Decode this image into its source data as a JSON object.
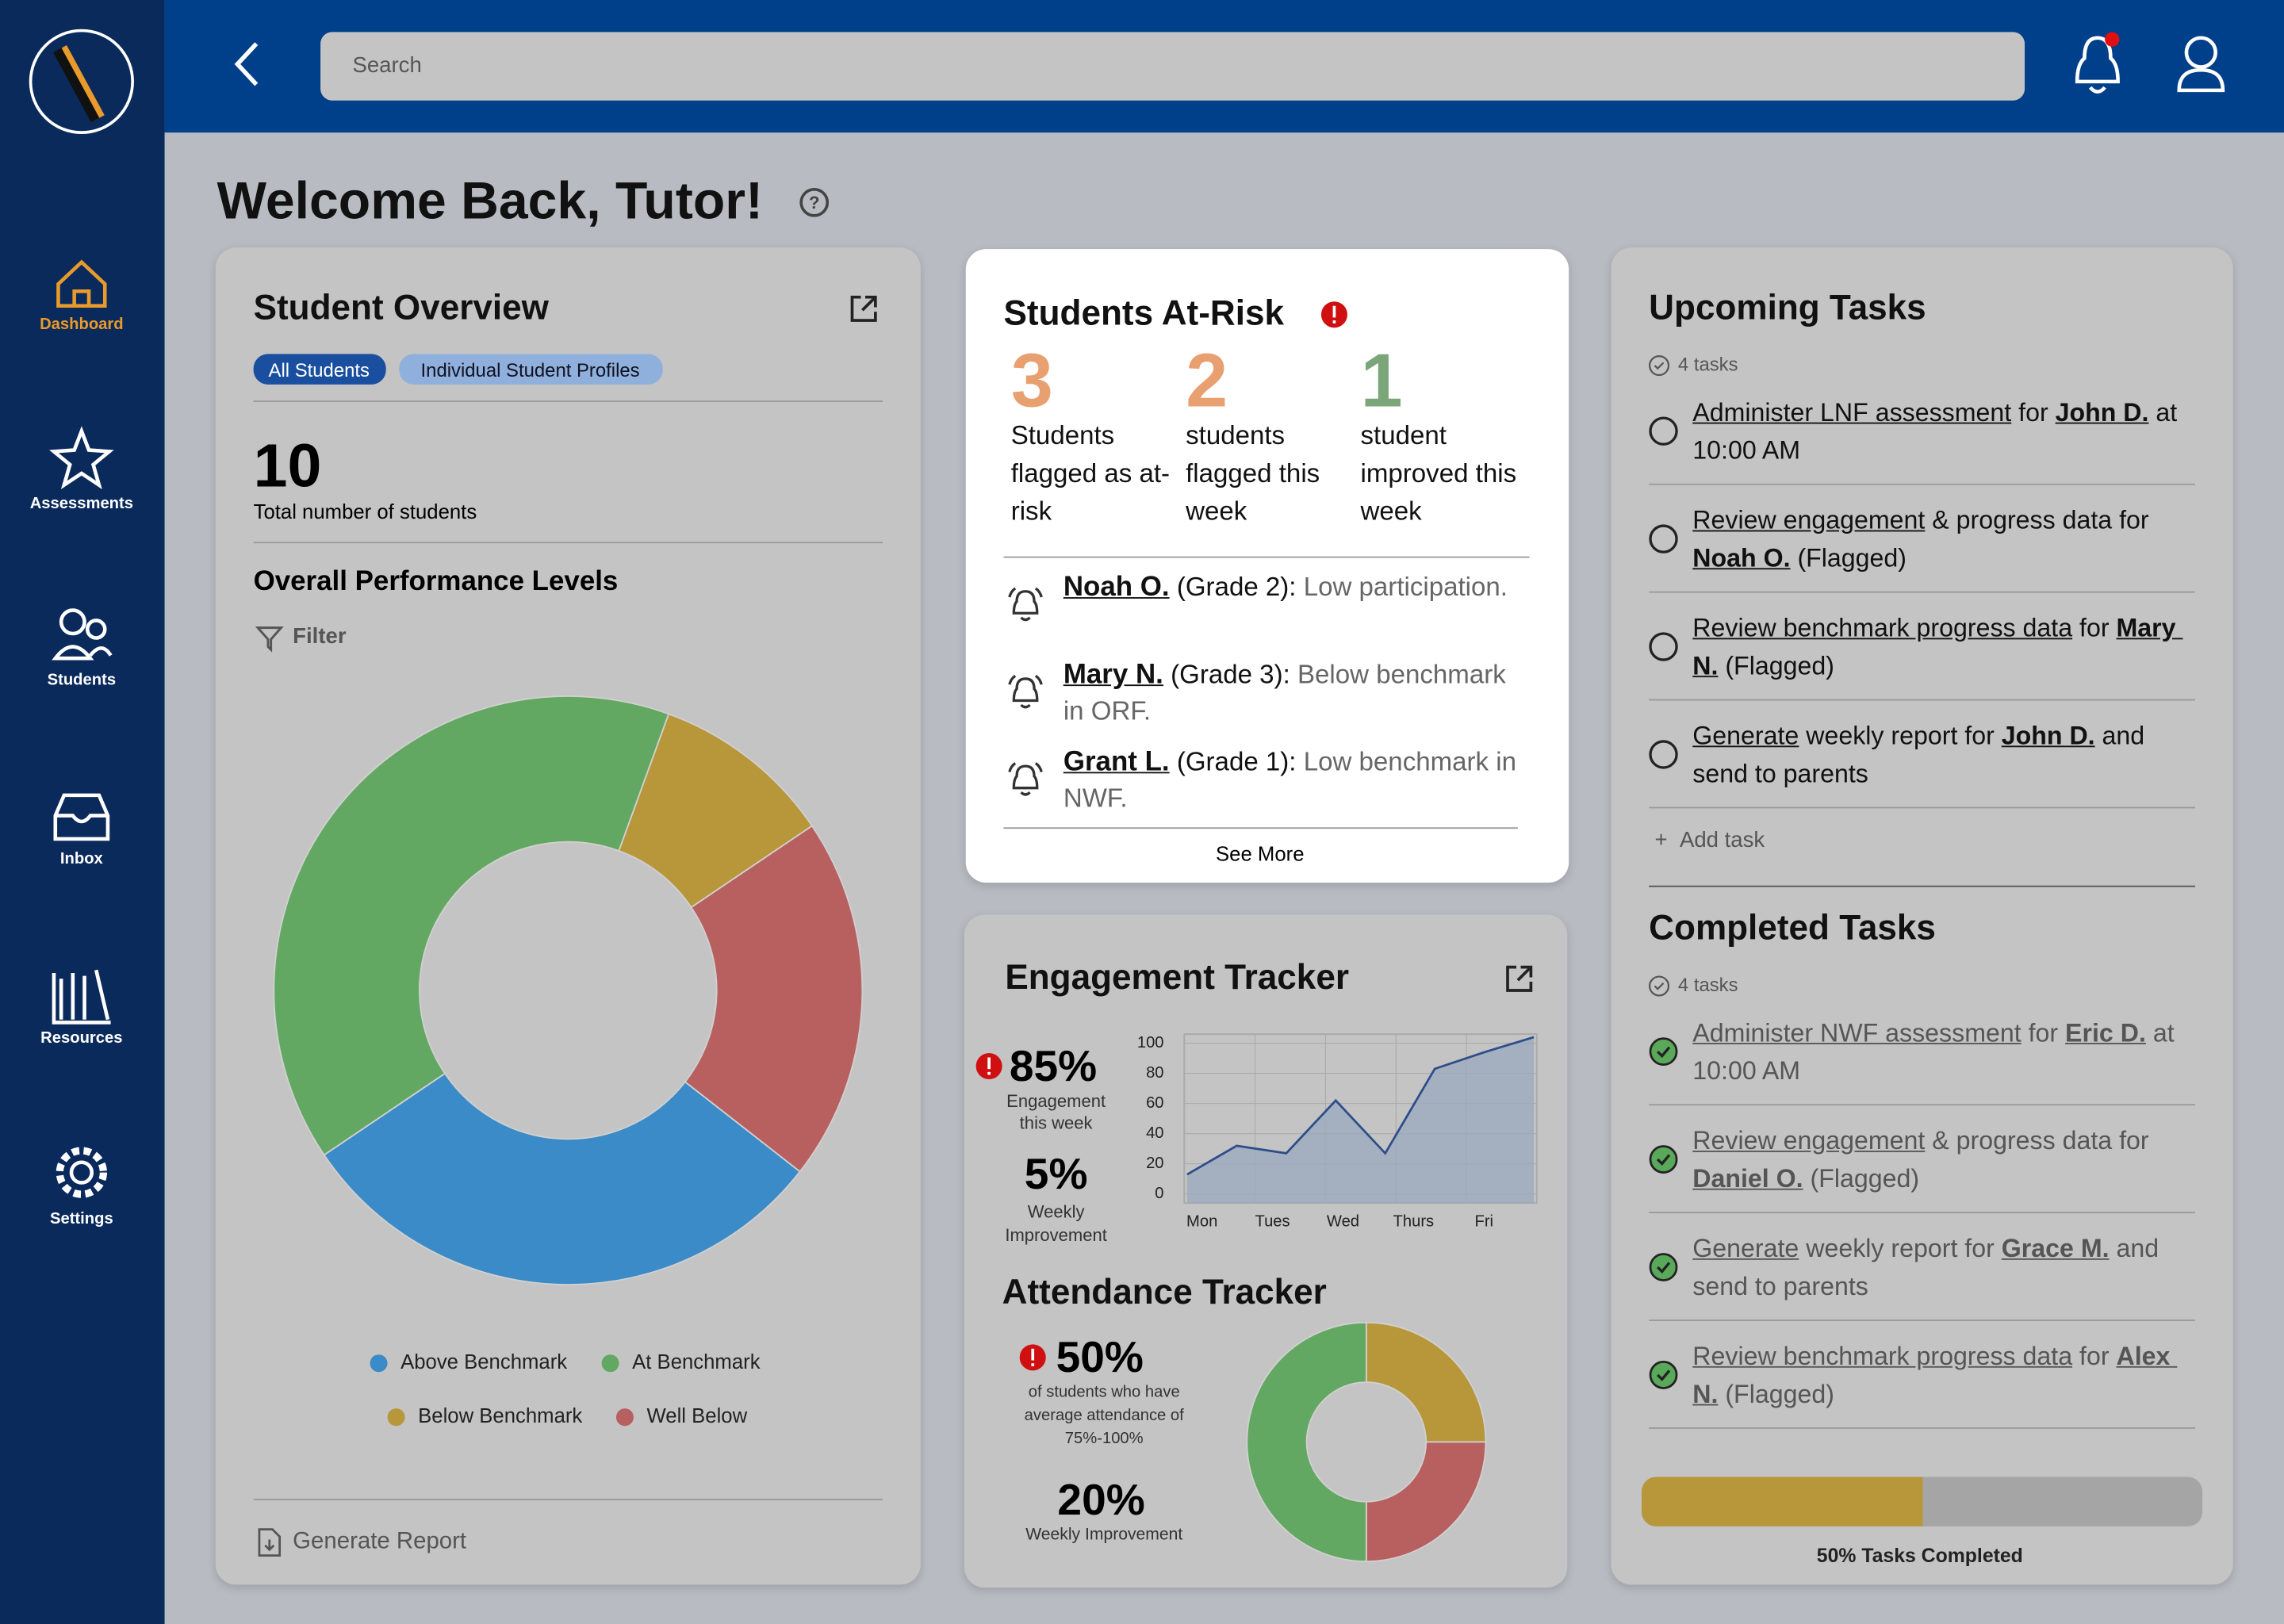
{
  "sidebar": {
    "items": [
      {
        "label": "Dashboard",
        "active": true
      },
      {
        "label": "Assessments"
      },
      {
        "label": "Students"
      },
      {
        "label": "Inbox"
      },
      {
        "label": "Resources"
      },
      {
        "label": "Settings"
      }
    ]
  },
  "header": {
    "search_placeholder": "Search"
  },
  "welcome": "Welcome Back, Tutor!",
  "overview": {
    "title": "Student Overview",
    "tabs": [
      "All Students",
      "Individual Student Profiles"
    ],
    "total": "10",
    "total_label": "Total number of students",
    "section": "Overall Performance Levels",
    "filter": "Filter",
    "footer": "Generate Report"
  },
  "at_risk": {
    "title": "Students At-Risk",
    "stats": [
      {
        "number": "3",
        "label": "Students flagged as at-risk",
        "color": "#e8a070"
      },
      {
        "number": "2",
        "label": "students flagged this week",
        "color": "#e8a070"
      },
      {
        "number": "1",
        "label": "student improved this week",
        "color": "#7aa67a"
      }
    ],
    "alerts": [
      {
        "name": "Noah O.",
        "grade": "(Grade 2):",
        "note": "Low participation."
      },
      {
        "name": "Mary N.",
        "grade": "(Grade 3):",
        "note": "Below benchmark in ORF."
      },
      {
        "name": "Grant L.",
        "grade": "(Grade 1):",
        "note": "Low benchmark in NWF."
      }
    ],
    "more": "See More"
  },
  "chart_data": [
    {
      "type": "pie",
      "donut": true,
      "categories": [
        "Above Benchmark",
        "At Benchmark",
        "Below Benchmark",
        "Well Below"
      ],
      "values": [
        30,
        40,
        10,
        20
      ],
      "colors": [
        "#3a8bc8",
        "#62a862",
        "#b8963a",
        "#b85f5f"
      ]
    },
    {
      "type": "line",
      "title": "Engagement Tracker",
      "xticks": [
        "Mon",
        "Tues",
        "Wed",
        "Thurs",
        "Fri"
      ],
      "values": [
        13,
        32,
        27,
        62,
        27,
        83,
        94,
        104
      ],
      "ylim": [
        -6,
        106
      ],
      "yticks": [
        0,
        20,
        40,
        60,
        80,
        100
      ],
      "grid": true,
      "color": "#2d4d8a",
      "fill": "#9aa8bd",
      "annotations": {
        "main": "85%",
        "main_label": "Engagement this week",
        "second": "5%",
        "second_label": "Weekly Improvement"
      }
    },
    {
      "type": "pie",
      "donut": true,
      "title": "Attendance Tracker",
      "values": [
        25,
        25,
        50
      ],
      "colors": [
        "#b8963a",
        "#b85f5f",
        "#62a862"
      ],
      "annotations": {
        "main": "50%",
        "main_label": "of students who have average attendance of 75%-100%",
        "second": "20%",
        "second_label": "Weekly Improvement"
      }
    }
  ],
  "upcoming": {
    "title": "Upcoming Tasks",
    "count": "4 tasks",
    "add": "Add task",
    "items": [
      [
        {
          "text": "Administer LNF assessment",
          "underline": true
        },
        {
          "text": " for "
        },
        {
          "text": "John D.",
          "underline": true,
          "bold": true
        },
        {
          "text": " at 10:00 AM"
        }
      ],
      [
        {
          "text": "Review engagement",
          "underline": true
        },
        {
          "text": " & progress data for "
        },
        {
          "text": "Noah O.",
          "underline": true,
          "bold": true
        },
        {
          "text": " (Flagged)"
        }
      ],
      [
        {
          "text": "Review benchmark progress data",
          "underline": true
        },
        {
          "text": " for "
        },
        {
          "text": "Mary N.",
          "underline": true,
          "bold": true
        },
        {
          "text": " (Flagged)"
        }
      ],
      [
        {
          "text": "Generate",
          "underline": true
        },
        {
          "text": " weekly report for "
        },
        {
          "text": "John D.",
          "underline": true,
          "bold": true
        },
        {
          "text": " and send to parents"
        }
      ]
    ]
  },
  "completed": {
    "title": "Completed Tasks",
    "count": "4 tasks",
    "items": [
      [
        {
          "text": "Administer NWF assessment",
          "underline": true
        },
        {
          "text": " for "
        },
        {
          "text": "Eric D.",
          "underline": true,
          "bold": true
        },
        {
          "text": " at 10:00 AM"
        }
      ],
      [
        {
          "text": "Review engagement",
          "underline": true
        },
        {
          "text": " & progress data for "
        },
        {
          "text": "Daniel O.",
          "underline": true,
          "bold": true
        },
        {
          "text": " (Flagged)"
        }
      ],
      [
        {
          "text": "Generate",
          "underline": true
        },
        {
          "text": " weekly report for "
        },
        {
          "text": "Grace M.",
          "underline": true,
          "bold": true
        },
        {
          "text": " and send to parents"
        }
      ],
      [
        {
          "text": "Review benchmark progress data",
          "underline": true
        },
        {
          "text": " for "
        },
        {
          "text": "Alex N.",
          "underline": true,
          "bold": true
        },
        {
          "text": " (Flagged)"
        }
      ]
    ]
  },
  "progress": {
    "value": 50,
    "label": "50% Tasks Completed",
    "color": "#b8963a"
  }
}
